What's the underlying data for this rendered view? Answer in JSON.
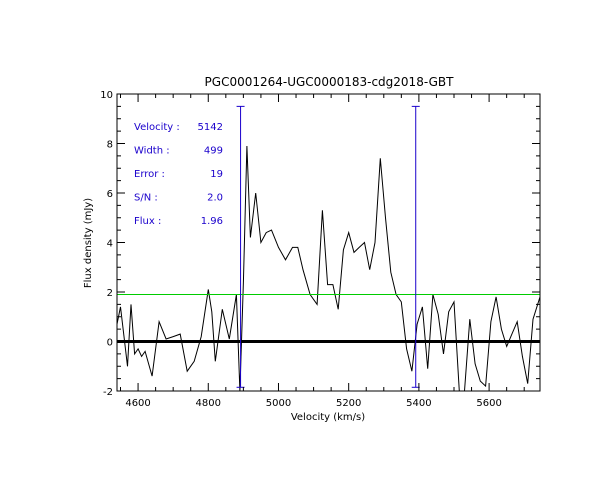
{
  "chart_data": {
    "type": "line",
    "title": "PGC0001264-UGC0000183-cdg2018-GBT",
    "xlabel": "Velocity (km/s)",
    "ylabel": "Flux density (mJy)",
    "xlim": [
      4540,
      5745
    ],
    "ylim": [
      -2,
      10
    ],
    "xticks": [
      4600,
      4800,
      5000,
      5200,
      5400,
      5600
    ],
    "yticks": [
      -2,
      0,
      2,
      4,
      6,
      8,
      10
    ],
    "grid": false,
    "series": [
      {
        "name": "spectrum",
        "color": "#000000",
        "x": [
          4540,
          4550,
          4560,
          4570,
          4580,
          4590,
          4600,
          4610,
          4620,
          4640,
          4660,
          4680,
          4700,
          4720,
          4740,
          4760,
          4780,
          4800,
          4810,
          4820,
          4840,
          4860,
          4880,
          4890,
          4900,
          4910,
          4920,
          4935,
          4950,
          4965,
          4980,
          5000,
          5020,
          5040,
          5055,
          5070,
          5090,
          5110,
          5125,
          5140,
          5155,
          5170,
          5185,
          5200,
          5215,
          5230,
          5245,
          5260,
          5275,
          5290,
          5305,
          5320,
          5335,
          5350,
          5365,
          5380,
          5395,
          5410,
          5425,
          5440,
          5455,
          5470,
          5485,
          5500,
          5515,
          5530,
          5545,
          5560,
          5575,
          5590,
          5605,
          5620,
          5635,
          5650,
          5665,
          5680,
          5695,
          5710,
          5725,
          5745
        ],
        "y": [
          0.7,
          1.4,
          0.2,
          -1.0,
          1.5,
          -0.5,
          -0.3,
          -0.6,
          -0.4,
          -1.4,
          0.8,
          0.1,
          0.2,
          0.3,
          -1.2,
          -0.8,
          0.2,
          2.1,
          1.2,
          -0.8,
          1.3,
          0.1,
          1.9,
          -2.0,
          2.4,
          7.9,
          4.2,
          6.0,
          4.0,
          4.4,
          4.5,
          3.8,
          3.3,
          3.8,
          3.8,
          2.9,
          1.9,
          1.5,
          5.3,
          2.3,
          2.3,
          1.3,
          3.7,
          4.4,
          3.6,
          3.8,
          4.0,
          2.9,
          4.0,
          7.4,
          5.0,
          2.8,
          1.9,
          1.6,
          -0.3,
          -1.2,
          0.7,
          1.4,
          -1.1,
          1.9,
          1.1,
          -0.5,
          1.2,
          1.6,
          -2.0,
          -2.0,
          0.9,
          -0.9,
          -1.6,
          -1.8,
          0.8,
          1.8,
          0.5,
          -0.2,
          0.3,
          0.8,
          -0.6,
          -1.7,
          0.9,
          1.8
        ]
      }
    ],
    "baseline": {
      "y": 0,
      "color": "#000000"
    },
    "threshold": {
      "y": 1.9,
      "color": "#00cc00"
    },
    "markers": [
      {
        "x": 4892,
        "y_low": -1.85,
        "y_high": 9.5,
        "color": "#1a00cc"
      },
      {
        "x": 5391,
        "y_low": -1.85,
        "y_high": 9.5,
        "color": "#1a00cc"
      }
    ],
    "annotations": [
      {
        "label": "Velocity :",
        "value": "5142"
      },
      {
        "label": "Width :",
        "value": "499"
      },
      {
        "label": "Error :",
        "value": "19"
      },
      {
        "label": "S/N :",
        "value": "2.0"
      },
      {
        "label": "Flux :",
        "value": "1.96"
      }
    ],
    "annotation_color": "#1a00cc"
  }
}
